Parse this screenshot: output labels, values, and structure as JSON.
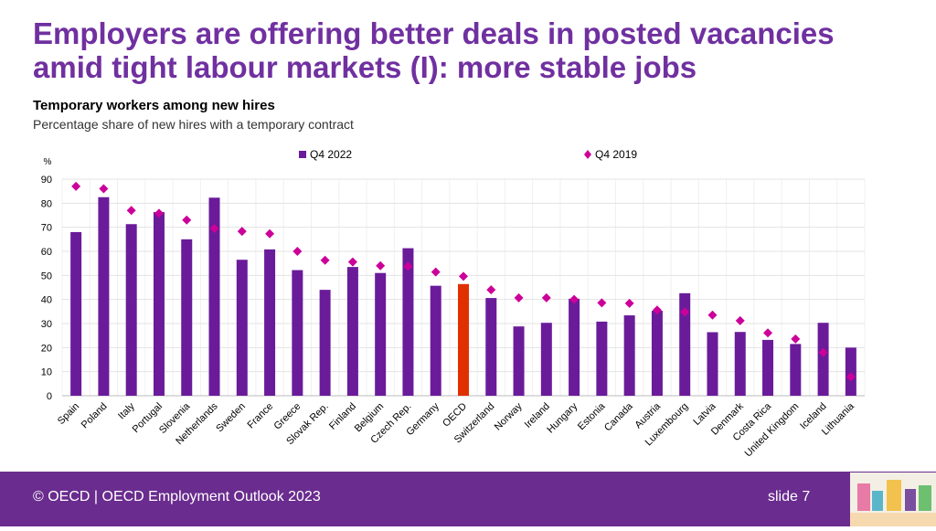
{
  "title": "Employers are offering better deals in posted vacancies amid tight labour markets (I): more stable jobs",
  "footer": {
    "text": "© OECD | OECD Employment Outlook 2023",
    "slide": "slide 7"
  },
  "colors": {
    "bar": "#6a1b9a",
    "highlight": "#e03000",
    "marker": "#cc0099",
    "title": "#7030a0"
  },
  "chart_data": {
    "type": "bar",
    "title": "Temporary workers among new hires",
    "subtitle": "Percentage share of new hires with a temporary contract",
    "ylabel": "%",
    "ylim": [
      0,
      90
    ],
    "yticks": [
      0,
      10,
      20,
      30,
      40,
      50,
      60,
      70,
      80,
      90
    ],
    "grid": true,
    "legend": "top",
    "categories": [
      "Spain",
      "Poland",
      "Italy",
      "Portugal",
      "Slovenia",
      "Netherlands",
      "Sweden",
      "France",
      "Greece",
      "Slovak Rep.",
      "Finland",
      "Belgium",
      "Czech Rep.",
      "Germany",
      "OECD",
      "Switzerland",
      "Norway",
      "Ireland",
      "Hungary",
      "Estonia",
      "Canada",
      "Austria",
      "Luxembourg",
      "Latvia",
      "Denmark",
      "Costa Rica",
      "United Kingdom",
      "Iceland",
      "Lithuania"
    ],
    "highlight": "OECD",
    "series": [
      {
        "name": "Q4 2022",
        "kind": "bar",
        "values": [
          68,
          82.5,
          71.3,
          76.3,
          65,
          82.3,
          56.5,
          60.8,
          52.2,
          44,
          53.5,
          51,
          61.3,
          45.7,
          46.4,
          40.6,
          28.8,
          30.3,
          40.3,
          30.8,
          33.4,
          35.3,
          42.6,
          26.4,
          26.5,
          23.2,
          21.5,
          30.3,
          20
        ]
      },
      {
        "name": "Q4 2019",
        "kind": "marker",
        "values": [
          87,
          86,
          77,
          75.8,
          73,
          69.5,
          68.3,
          67.3,
          60,
          56.3,
          55.6,
          54,
          53.8,
          51.4,
          49.6,
          44,
          40.7,
          40.7,
          40,
          38.6,
          38.4,
          35.6,
          34.8,
          33.5,
          31.2,
          26.1,
          23.6,
          18,
          7.9
        ]
      }
    ]
  }
}
